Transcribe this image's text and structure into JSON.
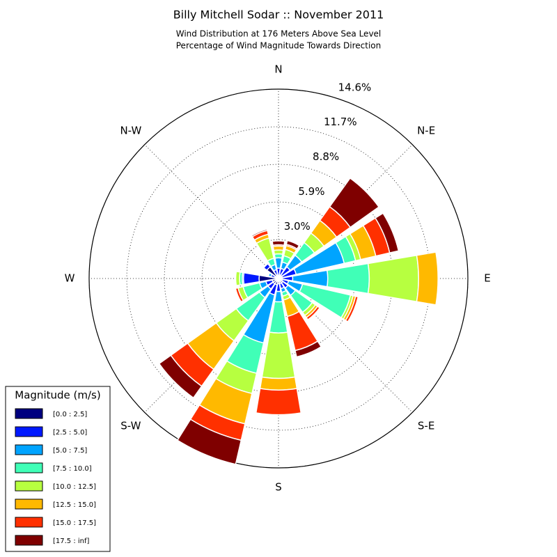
{
  "chart_data": {
    "type": "windrose",
    "title": "Billy Mitchell Sodar :: November 2011",
    "subtitle": [
      "Wind Distribution at 176 Meters Above Sea Level",
      "Percentage of Wind Magnitude Towards Direction"
    ],
    "x": [
      0,
      22.5,
      45,
      67.5,
      90,
      112.5,
      135,
      157.5,
      180,
      202.5,
      225,
      247.5,
      270,
      292.5,
      315,
      337.5
    ],
    "rlim": [
      0,
      14.6
    ],
    "rticks": [
      {
        "value": 3.0,
        "label": "3.0%"
      },
      {
        "value": 5.9,
        "label": "5.9%"
      },
      {
        "value": 8.8,
        "label": "8.8%"
      },
      {
        "value": 11.7,
        "label": "11.7%"
      },
      {
        "value": 14.6,
        "label": "14.6%"
      }
    ],
    "direction_labels": [
      {
        "value": 0,
        "label": "N"
      },
      {
        "value": 45,
        "label": "N-E"
      },
      {
        "value": 90,
        "label": "E"
      },
      {
        "value": 135,
        "label": "S-E"
      },
      {
        "value": 180,
        "label": "S"
      },
      {
        "value": 225,
        "label": "S-W"
      },
      {
        "value": 270,
        "label": "W"
      },
      {
        "value": 315,
        "label": "N-W"
      }
    ],
    "legend_title": "Magnitude (m/s)",
    "legend_position": "lower left",
    "series": [
      {
        "name": "[0.0 : 2.5]",
        "color": "#00007f",
        "values": [
          0.2,
          0.3,
          0.3,
          0.3,
          0.3,
          0.3,
          0.4,
          0.4,
          0.4,
          0.5,
          0.5,
          0.5,
          1.5,
          0.3,
          1.1,
          0.3
        ]
      },
      {
        "name": "[2.5 : 5.0]",
        "color": "#0019ff",
        "values": [
          0.6,
          0.5,
          0.8,
          1.1,
          0.8,
          0.5,
          0.5,
          0.4,
          0.6,
          0.8,
          0.5,
          0.5,
          1.2,
          0.3,
          0.3,
          0.4
        ]
      },
      {
        "name": "[5.0 : 7.5]",
        "color": "#00a4ff",
        "values": [
          0.8,
          0.5,
          1.1,
          3.8,
          2.7,
          1.1,
          0.7,
          0.3,
          0.8,
          3.8,
          0.8,
          0.5,
          0.1,
          0.2,
          0,
          0.4
        ]
      },
      {
        "name": "[7.5 : 10.0]",
        "color": "#40ffb7",
        "values": [
          0.3,
          0.5,
          1.2,
          0.9,
          3.2,
          3.8,
          1.6,
          0.3,
          2.4,
          2.4,
          2.2,
          1.3,
          0.2,
          0,
          0,
          0.5
        ]
      },
      {
        "name": "[10.0 : 12.5]",
        "color": "#b7ff40",
        "values": [
          0.3,
          0.5,
          0.9,
          0.4,
          3.8,
          0.2,
          0.3,
          0.3,
          3.5,
          1.6,
          1.9,
          0.4,
          0.3,
          0,
          0,
          1.6
        ]
      },
      {
        "name": "[12.5 : 15.0]",
        "color": "#ffb900",
        "values": [
          0.3,
          0.3,
          1.2,
          1.2,
          1.5,
          0.2,
          0.2,
          1.3,
          0.9,
          2.4,
          2.7,
          0,
          0,
          0,
          0,
          0.3
        ]
      },
      {
        "name": "[15.0 : 17.5]",
        "color": "#ff3000",
        "values": [
          0.1,
          0.1,
          1.3,
          1.1,
          0,
          0.2,
          0.2,
          2.7,
          1.9,
          1.3,
          1.6,
          0.2,
          0,
          0,
          0,
          0.3
        ]
      },
      {
        "name": "[17.5 : inf]",
        "color": "#7f0000",
        "values": [
          0.3,
          0.3,
          2.7,
          0.7,
          0,
          0,
          0,
          0.5,
          0,
          1.9,
          1.1,
          0,
          0,
          0,
          0,
          0.1
        ]
      }
    ]
  }
}
